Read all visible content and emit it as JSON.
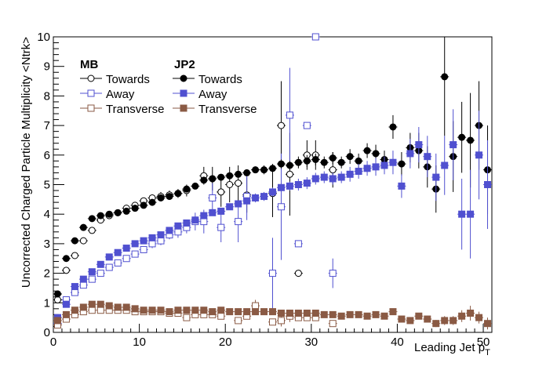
{
  "chart_data": {
    "type": "scatter",
    "xlabel": "Leading Jet p",
    "xlabel_subscript": "T",
    "ylabel": "Uncorrected Charged Particle Multiplicity <Ntrk>",
    "xlim": [
      0,
      51
    ],
    "ylim": [
      0,
      10
    ],
    "x_ticks": [
      0,
      10,
      20,
      30,
      40,
      50
    ],
    "y_ticks": [
      0,
      1,
      2,
      3,
      4,
      5,
      6,
      7,
      8,
      9,
      10
    ],
    "grid": false,
    "legend": {
      "placement": "top-left",
      "group_mb": "MB",
      "group_jp2": "JP2",
      "labels": [
        "Towards",
        "Away",
        "Transverse",
        "Towards",
        "Away",
        "Transverse"
      ]
    },
    "series": [
      {
        "name": "Towards",
        "group": "MB",
        "color": "#000000",
        "marker": "open-circle",
        "x": [
          0.5,
          1.5,
          2.5,
          3.5,
          4.5,
          5.5,
          6.5,
          7.5,
          8.5,
          9.5,
          10.5,
          11.5,
          12.5,
          13.5,
          14.5,
          15.5,
          17.5,
          18.5,
          19.5,
          20.5,
          21.5,
          22.5,
          25.5,
          26.5,
          27.5,
          28.5,
          29.5,
          30.5,
          32.5
        ],
        "y": [
          1.1,
          2.1,
          2.6,
          3.1,
          3.45,
          3.8,
          3.95,
          4.05,
          4.2,
          4.3,
          4.45,
          4.55,
          4.6,
          4.65,
          4.7,
          4.8,
          5.3,
          5.2,
          4.75,
          5.0,
          5.05,
          4.65,
          4.7,
          7.0,
          5.35,
          2.0,
          6.0,
          6.0,
          5.5
        ],
        "err": [
          0.1,
          0.1,
          0.1,
          0.1,
          0.1,
          0.1,
          0.1,
          0.1,
          0.1,
          0.1,
          0.1,
          0.1,
          0.15,
          0.15,
          0.15,
          0.2,
          0.3,
          0.4,
          0.5,
          0.6,
          0.6,
          0.6,
          0.8,
          1.5,
          1.4,
          0.1,
          0.5,
          0.5,
          0.6
        ]
      },
      {
        "name": "Away",
        "group": "MB",
        "color": "#5050d0",
        "marker": "open-square",
        "x": [
          0.5,
          1.5,
          2.5,
          3.5,
          4.5,
          5.5,
          6.5,
          7.5,
          8.5,
          9.5,
          10.5,
          11.5,
          12.5,
          13.5,
          14.5,
          15.5,
          16.5,
          17.5,
          18.5,
          19.5,
          21.5,
          22.5,
          25.5,
          26.5,
          27.5,
          28.5,
          29.5,
          30.5,
          32.5
        ],
        "y": [
          0.3,
          1.1,
          1.35,
          1.6,
          1.8,
          2.0,
          2.2,
          2.35,
          2.5,
          2.65,
          2.8,
          3.0,
          3.1,
          3.3,
          3.4,
          3.55,
          3.75,
          3.75,
          4.55,
          3.55,
          3.75,
          4.6,
          2.0,
          4.25,
          7.35,
          3.0,
          7.0,
          10.0,
          2.0
        ],
        "err": [
          0.1,
          0.1,
          0.1,
          0.1,
          0.1,
          0.1,
          0.1,
          0.1,
          0.1,
          0.1,
          0.1,
          0.15,
          0.15,
          0.15,
          0.2,
          0.2,
          0.3,
          0.4,
          0.5,
          0.5,
          0.7,
          0.8,
          1.2,
          1.8,
          1.6,
          0.1,
          0.1,
          0.1,
          0.5
        ]
      },
      {
        "name": "Transverse",
        "group": "MB",
        "color": "#8a5a44",
        "marker": "open-square",
        "x": [
          0.5,
          1.5,
          2.5,
          3.5,
          4.5,
          5.5,
          6.5,
          7.5,
          8.5,
          9.5,
          10.5,
          11.5,
          12.5,
          13.5,
          14.5,
          15.5,
          16.5,
          17.5,
          18.5,
          19.5,
          21.5,
          22.5,
          23.5,
          25.5,
          26.5,
          27.5,
          28.5,
          29.5,
          30.5,
          32.5
        ],
        "y": [
          0.25,
          0.45,
          0.6,
          0.7,
          0.75,
          0.75,
          0.75,
          0.75,
          0.75,
          0.7,
          0.7,
          0.7,
          0.7,
          0.65,
          0.65,
          0.5,
          0.6,
          0.6,
          0.6,
          0.55,
          0.4,
          0.55,
          0.9,
          0.35,
          0.4,
          0.55,
          0.5,
          0.5,
          0.5,
          0.3
        ],
        "err": [
          0.05,
          0.05,
          0.05,
          0.05,
          0.05,
          0.05,
          0.05,
          0.05,
          0.05,
          0.05,
          0.05,
          0.05,
          0.05,
          0.05,
          0.05,
          0.05,
          0.05,
          0.05,
          0.05,
          0.05,
          0.1,
          0.1,
          0.2,
          0.1,
          0.2,
          0.2,
          0.1,
          0.1,
          0.1,
          0.1
        ]
      },
      {
        "name": "Towards",
        "group": "JP2",
        "color": "#000000",
        "marker": "filled-circle",
        "x": [
          0.5,
          1.5,
          2.5,
          3.5,
          4.5,
          5.5,
          6.5,
          7.5,
          8.5,
          9.5,
          10.5,
          11.5,
          12.5,
          13.5,
          14.5,
          15.5,
          16.5,
          17.5,
          18.5,
          19.5,
          20.5,
          21.5,
          22.5,
          23.5,
          24.5,
          25.5,
          26.5,
          27.5,
          28.5,
          29.5,
          30.5,
          31.5,
          32.5,
          33.5,
          34.5,
          35.5,
          36.5,
          37.5,
          38.5,
          39.5,
          40.5,
          41.5,
          42.5,
          43.5,
          44.5,
          45.5,
          46.5,
          47.5,
          48.5,
          49.5,
          50.5
        ],
        "y": [
          1.3,
          2.5,
          3.1,
          3.55,
          3.85,
          3.95,
          4.0,
          4.05,
          4.1,
          4.2,
          4.3,
          4.4,
          4.55,
          4.6,
          4.7,
          4.85,
          4.95,
          5.15,
          5.2,
          5.25,
          5.3,
          5.35,
          5.4,
          5.5,
          5.5,
          5.55,
          5.7,
          5.65,
          5.75,
          5.8,
          5.85,
          5.75,
          5.9,
          5.75,
          5.95,
          5.8,
          6.15,
          6.05,
          5.85,
          6.95,
          5.7,
          6.25,
          6.15,
          5.6,
          4.85,
          8.65,
          5.95,
          6.6,
          6.5,
          7.0,
          5.5
        ],
        "err": [
          0.1,
          0.1,
          0.1,
          0.1,
          0.1,
          0.1,
          0.1,
          0.1,
          0.1,
          0.1,
          0.1,
          0.1,
          0.1,
          0.1,
          0.1,
          0.1,
          0.1,
          0.1,
          0.1,
          0.1,
          0.1,
          0.1,
          0.1,
          0.1,
          0.15,
          0.15,
          0.15,
          0.15,
          0.2,
          0.2,
          0.2,
          0.2,
          0.2,
          0.2,
          0.25,
          0.25,
          0.25,
          0.3,
          0.3,
          0.4,
          0.4,
          0.5,
          0.6,
          0.7,
          0.8,
          2.0,
          1.2,
          1.2,
          1.6,
          1.5,
          1.5
        ]
      },
      {
        "name": "Away",
        "group": "JP2",
        "color": "#5050d0",
        "marker": "filled-square",
        "x": [
          0.5,
          1.5,
          2.5,
          3.5,
          4.5,
          5.5,
          6.5,
          7.5,
          8.5,
          9.5,
          10.5,
          11.5,
          12.5,
          13.5,
          14.5,
          15.5,
          16.5,
          17.5,
          18.5,
          19.5,
          20.5,
          21.5,
          22.5,
          23.5,
          24.5,
          25.5,
          26.5,
          27.5,
          28.5,
          29.5,
          30.5,
          31.5,
          32.5,
          33.5,
          34.5,
          35.5,
          36.5,
          37.5,
          38.5,
          39.5,
          40.5,
          41.5,
          42.5,
          43.5,
          44.5,
          45.5,
          46.5,
          47.5,
          48.5,
          49.5,
          50.5
        ],
        "y": [
          0.5,
          0.95,
          1.55,
          1.8,
          2.05,
          2.3,
          2.55,
          2.7,
          2.85,
          3.0,
          3.1,
          3.2,
          3.3,
          3.45,
          3.6,
          3.7,
          3.8,
          3.95,
          4.05,
          4.1,
          4.25,
          4.35,
          4.45,
          4.55,
          4.6,
          4.75,
          4.9,
          4.95,
          5.0,
          5.05,
          5.2,
          5.25,
          5.2,
          5.25,
          5.35,
          5.45,
          5.55,
          5.6,
          5.65,
          5.75,
          4.95,
          6.05,
          6.35,
          5.95,
          5.25,
          5.65,
          6.35,
          4.0,
          4.0,
          6.0,
          5.0
        ],
        "err": [
          0.1,
          0.1,
          0.1,
          0.1,
          0.1,
          0.1,
          0.1,
          0.1,
          0.1,
          0.1,
          0.1,
          0.1,
          0.1,
          0.1,
          0.1,
          0.1,
          0.1,
          0.1,
          0.1,
          0.1,
          0.1,
          0.1,
          0.1,
          0.15,
          0.15,
          0.15,
          0.15,
          0.15,
          0.2,
          0.2,
          0.2,
          0.2,
          0.2,
          0.2,
          0.25,
          0.25,
          0.25,
          0.3,
          0.3,
          0.4,
          0.4,
          0.5,
          0.6,
          0.7,
          0.8,
          1.0,
          1.2,
          1.2,
          1.5,
          1.5,
          1.5
        ]
      },
      {
        "name": "Transverse",
        "group": "JP2",
        "color": "#8a5a44",
        "marker": "filled-square",
        "x": [
          0.5,
          1.5,
          2.5,
          3.5,
          4.5,
          5.5,
          6.5,
          7.5,
          8.5,
          9.5,
          10.5,
          11.5,
          12.5,
          13.5,
          14.5,
          15.5,
          16.5,
          17.5,
          18.5,
          19.5,
          20.5,
          21.5,
          22.5,
          23.5,
          24.5,
          25.5,
          26.5,
          27.5,
          28.5,
          29.5,
          30.5,
          31.5,
          32.5,
          33.5,
          34.5,
          35.5,
          36.5,
          37.5,
          38.5,
          39.5,
          40.5,
          41.5,
          42.5,
          43.5,
          44.5,
          45.5,
          46.5,
          47.5,
          48.5,
          49.5,
          50.5
        ],
        "y": [
          0.4,
          0.6,
          0.75,
          0.85,
          0.95,
          0.95,
          0.9,
          0.85,
          0.85,
          0.8,
          0.75,
          0.75,
          0.75,
          0.7,
          0.75,
          0.75,
          0.75,
          0.75,
          0.7,
          0.75,
          0.7,
          0.7,
          0.7,
          0.7,
          0.7,
          0.7,
          0.65,
          0.65,
          0.65,
          0.65,
          0.65,
          0.6,
          0.6,
          0.55,
          0.6,
          0.6,
          0.55,
          0.6,
          0.55,
          0.7,
          0.45,
          0.4,
          0.55,
          0.45,
          0.3,
          0.4,
          0.4,
          0.55,
          0.65,
          0.5,
          0.3
        ],
        "err": [
          0.05,
          0.05,
          0.05,
          0.05,
          0.05,
          0.05,
          0.05,
          0.05,
          0.05,
          0.05,
          0.05,
          0.05,
          0.05,
          0.05,
          0.05,
          0.05,
          0.05,
          0.05,
          0.05,
          0.05,
          0.05,
          0.05,
          0.05,
          0.05,
          0.05,
          0.05,
          0.05,
          0.05,
          0.05,
          0.05,
          0.05,
          0.05,
          0.05,
          0.05,
          0.05,
          0.05,
          0.05,
          0.05,
          0.05,
          0.05,
          0.08,
          0.08,
          0.1,
          0.1,
          0.12,
          0.15,
          0.15,
          0.2,
          0.25,
          0.2,
          0.2
        ]
      }
    ]
  }
}
